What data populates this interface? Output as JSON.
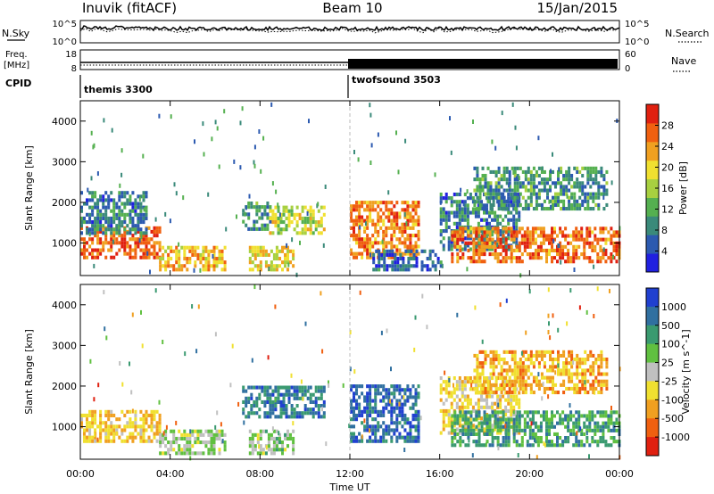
{
  "header": {
    "station": "Inuvik (fitACF)",
    "beam": "Beam 10",
    "date": "15/Jan/2015"
  },
  "noise_panel": {
    "left_label": "N.Sky",
    "right_label": "N.Search",
    "left_ticks": [
      "10^5",
      "10^0"
    ],
    "right_ticks": [
      "10^5",
      "10^0"
    ]
  },
  "freq_panel": {
    "left_label": "Freq.",
    "left_unit": "[MHz]",
    "right_label": "Nave",
    "left_ticks": [
      "18",
      "8"
    ],
    "right_ticks": [
      "60",
      "0"
    ]
  },
  "cpid_panel": {
    "label": "CPID",
    "modes": [
      {
        "name": "themis 3300",
        "start_hour": 0
      },
      {
        "name": "twofsound 3503",
        "start_hour": 12
      }
    ]
  },
  "chart_data": [
    {
      "type": "heatmap",
      "panel": "power",
      "ylabel": "Slant Range [km]",
      "ylim": [
        200,
        4500
      ],
      "xlim_hours": [
        0,
        24
      ],
      "yticks": [
        1000,
        2000,
        3000,
        4000
      ],
      "colorbar_label": "Power [dB]",
      "colorbar_ticks": [
        "4",
        "8",
        "12",
        "16",
        "20",
        "24",
        "28"
      ],
      "colorbar_colors": [
        "#2020e0",
        "#2c5ab0",
        "#3a8a7a",
        "#55b050",
        "#a8d040",
        "#f0e030",
        "#f0a020",
        "#f06010",
        "#e02010"
      ],
      "regions": [
        {
          "t0": 0.0,
          "t1": 3.6,
          "r0": 600,
          "r1": 1400,
          "intensity": 27
        },
        {
          "t0": 0.0,
          "t1": 3.0,
          "r0": 1200,
          "r1": 2200,
          "intensity": 8
        },
        {
          "t0": 3.5,
          "t1": 6.5,
          "r0": 300,
          "r1": 900,
          "intensity": 22
        },
        {
          "t0": 7.2,
          "t1": 8.4,
          "r0": 1300,
          "r1": 2000,
          "intensity": 10
        },
        {
          "t0": 8.4,
          "t1": 10.8,
          "r0": 1200,
          "r1": 1900,
          "intensity": 17
        },
        {
          "t0": 7.5,
          "t1": 9.5,
          "r0": 300,
          "r1": 900,
          "intensity": 20
        },
        {
          "t0": 12.0,
          "t1": 15.0,
          "r0": 600,
          "r1": 2000,
          "intensity": 25
        },
        {
          "t0": 13.0,
          "t1": 16.0,
          "r0": 300,
          "r1": 800,
          "intensity": 6
        },
        {
          "t0": 16.0,
          "t1": 19.5,
          "r0": 800,
          "r1": 2200,
          "intensity": 8
        },
        {
          "t0": 16.5,
          "t1": 24.0,
          "r0": 500,
          "r1": 1400,
          "intensity": 26
        },
        {
          "t0": 17.5,
          "t1": 23.5,
          "r0": 1800,
          "r1": 2800,
          "intensity": 10
        }
      ]
    },
    {
      "type": "heatmap",
      "panel": "velocity",
      "ylabel": "Slant Range [km]",
      "ylim": [
        200,
        4500
      ],
      "xlim_hours": [
        0,
        24
      ],
      "yticks": [
        1000,
        2000,
        3000,
        4000
      ],
      "colorbar_label": "Velocity [m s^-1]",
      "colorbar_ticks": [
        "1000",
        "500",
        "100",
        "25",
        "-25",
        "-100",
        "-500",
        "-1000"
      ],
      "colorbar_colors": [
        "#2040d0",
        "#3070a0",
        "#3a9a70",
        "#60c040",
        "#c0c0c0",
        "#f0e030",
        "#f0a020",
        "#f06010",
        "#e02010"
      ],
      "regions": [
        {
          "t0": 0.0,
          "t1": 3.6,
          "r0": 600,
          "r1": 1400,
          "intensity": -300
        },
        {
          "t0": 3.5,
          "t1": 6.5,
          "r0": 300,
          "r1": 900,
          "intensity": 80
        },
        {
          "t0": 7.2,
          "t1": 10.8,
          "r0": 1200,
          "r1": 2000,
          "intensity": 600
        },
        {
          "t0": 7.5,
          "t1": 9.5,
          "r0": 300,
          "r1": 900,
          "intensity": 120
        },
        {
          "t0": 12.0,
          "t1": 15.0,
          "r0": 600,
          "r1": 2000,
          "intensity": 700
        },
        {
          "t0": 16.0,
          "t1": 19.5,
          "r0": 800,
          "r1": 2200,
          "intensity": -200
        },
        {
          "t0": 16.5,
          "t1": 24.0,
          "r0": 500,
          "r1": 1400,
          "intensity": 400
        },
        {
          "t0": 17.5,
          "t1": 23.5,
          "r0": 1800,
          "r1": 2800,
          "intensity": -400
        }
      ]
    }
  ],
  "x_axis": {
    "ticks": [
      "00:00",
      "04:00",
      "08:00",
      "12:00",
      "16:00",
      "20:00",
      "00:00"
    ],
    "label": "Time UT"
  }
}
